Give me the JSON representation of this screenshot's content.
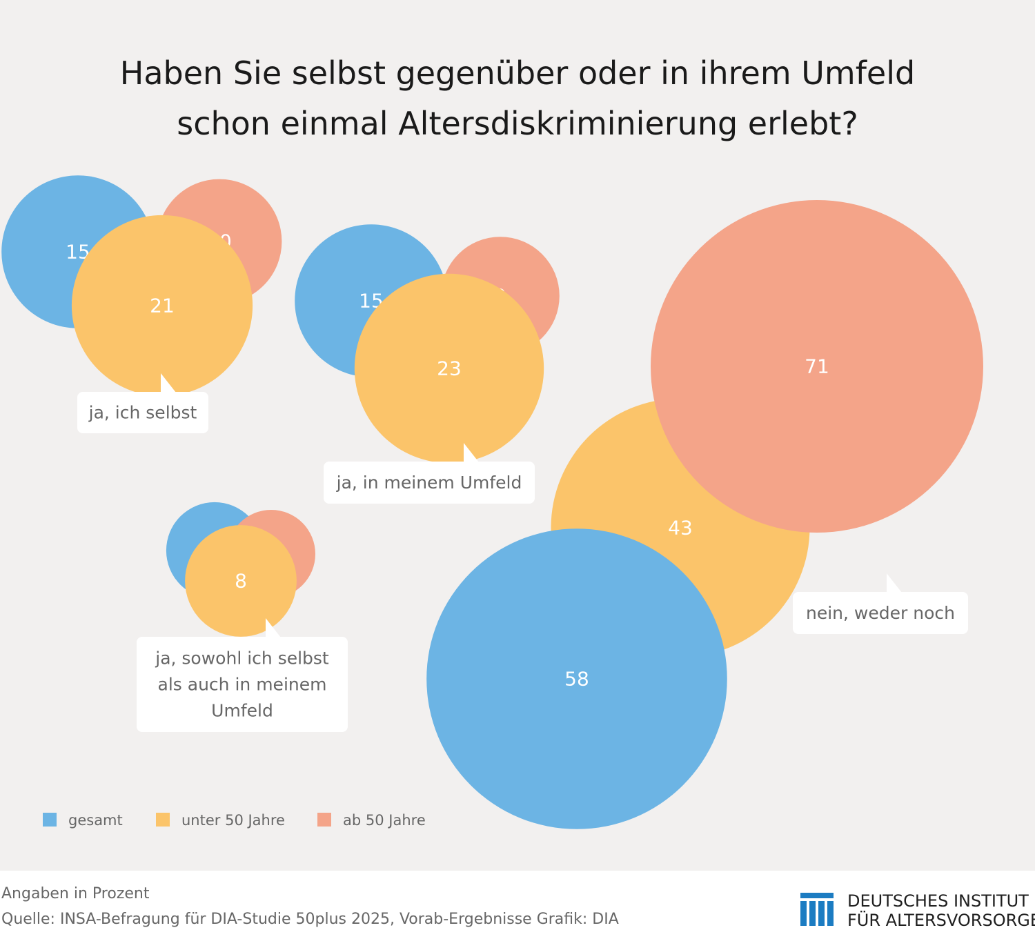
{
  "title_line1": "Haben Sie selbst gegenüber oder in ihrem Umfeld",
  "title_line2": "schon einmal Altersdiskriminierung erlebt?",
  "chart_data": {
    "type": "bubble",
    "categories": [
      {
        "label_lines": [
          "ja, ich selbst"
        ],
        "values": {
          "gesamt": 15,
          "unter_50": 21,
          "ab_50": 10
        }
      },
      {
        "label_lines": [
          "ja, in meinem Umfeld"
        ],
        "values": {
          "gesamt": 15,
          "unter_50": 23,
          "ab_50": 9
        }
      },
      {
        "label_lines": [
          "ja, sowohl ich selbst",
          "als auch in meinem",
          "Umfeld"
        ],
        "values": {
          "gesamt": 6,
          "unter_50": 8,
          "ab_50": 5
        }
      },
      {
        "label_lines": [
          "nein, weder noch"
        ],
        "values": {
          "gesamt": 58,
          "unter_50": 43,
          "ab_50": 71
        }
      }
    ],
    "series": [
      {
        "key": "gesamt",
        "name": "gesamt",
        "color": "#6cb4e4"
      },
      {
        "key": "unter_50",
        "name": "unter 50 Jahre",
        "color": "#fbc46a"
      },
      {
        "key": "ab_50",
        "name": "ab 50 Jahre",
        "color": "#f4a489"
      }
    ],
    "legend_position": "bottom-left",
    "unit_note": "Angaben in Prozent"
  },
  "footer": {
    "unit_note": "Angaben in Prozent",
    "source": "Quelle: INSA-Befragung für DIA-Studie 50plus 2025, Vorab-Ergebnisse  Grafik: DIA"
  },
  "logo": {
    "line1": "DEUTSCHES INSTITUT",
    "line2": "FÜR ALTERSVORSORGE",
    "color": "#1c7cc2"
  }
}
